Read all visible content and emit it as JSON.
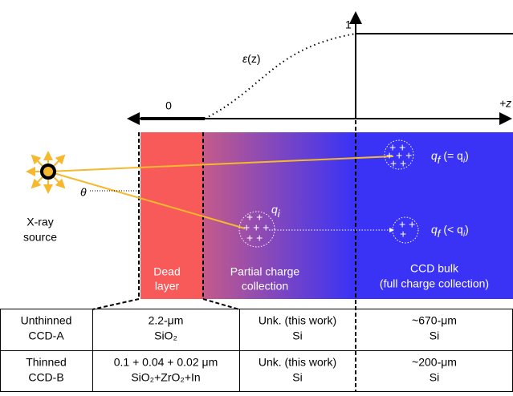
{
  "axis": {
    "one": "1",
    "zero": "0",
    "z": "+z",
    "curve": {
      "symbol": "ε",
      "arg": "(z)"
    }
  },
  "source": {
    "angle": "θ",
    "line1": "X-ray",
    "line2": "source"
  },
  "charges": {
    "qi": {
      "symbol": "q",
      "sub": "i"
    },
    "qf_equal": {
      "symbol": "q",
      "sub": "f",
      "note": "(= q",
      "note_sub": "i",
      "close": ")"
    },
    "qf_less": {
      "symbol": "q",
      "sub": "f",
      "note": "(< q",
      "note_sub": "i",
      "close": ")"
    }
  },
  "regions": {
    "dead": [
      "Dead",
      "layer"
    ],
    "partial": [
      "Partial charge",
      "collection"
    ],
    "bulk": [
      "CCD bulk",
      "(full charge collection)"
    ]
  },
  "table": {
    "rows": [
      [
        [
          "Unthinned",
          "CCD-A"
        ],
        [
          "2.2-μm",
          "SiO₂"
        ],
        [
          "Unk. (this work)",
          "Si"
        ],
        [
          "~670-μm",
          "Si"
        ]
      ],
      [
        [
          "Thinned",
          "CCD-B"
        ],
        [
          "0.1 + 0.04 + 0.02 μm",
          "SiO₂+ZrO₂+In"
        ],
        [
          "Unk. (this work)",
          "Si"
        ],
        [
          "~200-μm",
          "Si"
        ]
      ]
    ]
  }
}
